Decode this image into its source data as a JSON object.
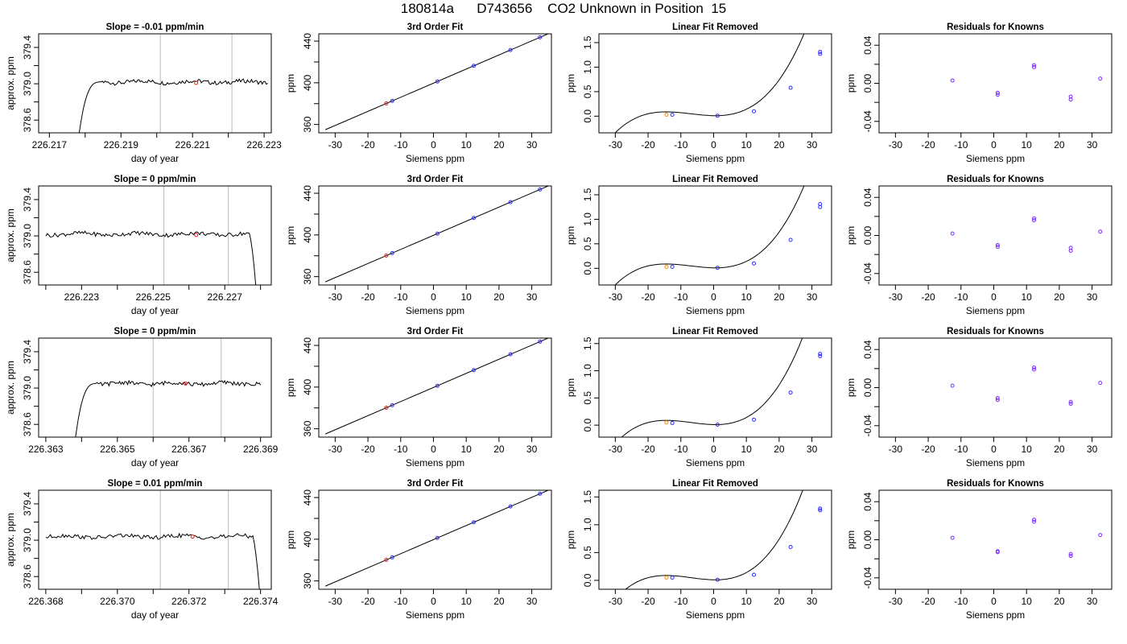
{
  "title": "180814a      D743656    CO2 Unknown in Position  15",
  "chart_data": [
    {
      "type": "line",
      "title": "Slope =  -0.01  ppm/min",
      "xlabel": "day of year",
      "ylabel": "approx. ppm",
      "xlim": [
        226.2167,
        226.2232
      ],
      "ylim": [
        378.46,
        379.55
      ],
      "xticks": [
        226.217,
        226.218,
        226.219,
        226.22,
        226.221,
        226.222,
        226.223
      ],
      "xticklabels": [
        "226.217",
        "",
        "226.219",
        "",
        "226.221",
        "",
        "226.223"
      ],
      "yticks": [
        378.6,
        378.8,
        379.0,
        379.2,
        379.4
      ],
      "yticklabels": [
        "378.6",
        "",
        "379.0",
        "",
        "379.4"
      ],
      "vlines": [
        226.2201,
        226.2221
      ],
      "marker": {
        "x": 226.2211,
        "y": 379.01
      },
      "series": [
        {
          "start": 226.2178,
          "end": 226.2231,
          "plateau": 379.02,
          "rise": "start",
          "drop": null
        }
      ]
    },
    {
      "type": "scatter",
      "title": "3rd Order Fit",
      "xlabel": "Siemens ppm",
      "ylabel": "ppm",
      "xlim": [
        -35,
        36
      ],
      "ylim": [
        352,
        447
      ],
      "xticks": [
        -30,
        -20,
        -10,
        0,
        10,
        20,
        30
      ],
      "yticks": [
        360,
        380,
        400,
        420,
        440
      ],
      "yticklabels": [
        "360",
        "",
        "400",
        "",
        "440"
      ],
      "fit": {
        "x0": -33,
        "y0": 355,
        "x1": 35,
        "y1": 447
      },
      "known_x": [
        -12.6,
        1.2,
        12.3,
        23.5,
        32.5
      ],
      "unknown_x": -14.4
    },
    {
      "type": "scatter",
      "title": "Linear Fit Removed",
      "xlabel": "Siemens ppm",
      "ylabel": "ppm",
      "xlim": [
        -35,
        36
      ],
      "ylim": [
        -0.34,
        1.68
      ],
      "xticks": [
        -30,
        -20,
        -10,
        0,
        10,
        20,
        30
      ],
      "yticks": [
        0,
        0.5,
        1.0,
        1.5
      ],
      "yticklabels": [
        "0.0",
        "0.5",
        "1.0",
        "1.5"
      ],
      "known": [
        [
          -12.6,
          0.03
        ],
        [
          1.2,
          0.01
        ],
        [
          12.3,
          0.1
        ],
        [
          23.5,
          0.58
        ],
        [
          32.5,
          1.27
        ],
        [
          32.5,
          1.31
        ]
      ],
      "unknown": [
        -14.4,
        0.03
      ],
      "curve": {
        "x_from": -33,
        "x_to": 34.5
      }
    },
    {
      "type": "scatter",
      "title": "Residuals for Knowns",
      "xlabel": "Siemens ppm",
      "ylabel": "ppm",
      "xlim": [
        -35,
        36
      ],
      "ylim": [
        -0.052,
        0.052
      ],
      "xticks": [
        -30,
        -20,
        -10,
        0,
        10,
        20,
        30
      ],
      "yticks": [
        -0.04,
        -0.02,
        0,
        0.02,
        0.04
      ],
      "yticklabels": [
        "-0.04",
        "",
        "0.00",
        "",
        "0.04"
      ],
      "points": [
        [
          -12.6,
          0.003
        ],
        [
          1.2,
          -0.01
        ],
        [
          1.2,
          -0.012
        ],
        [
          12.3,
          0.017
        ],
        [
          12.3,
          0.019
        ],
        [
          23.5,
          -0.014
        ],
        [
          23.5,
          -0.017
        ],
        [
          32.5,
          0.005
        ]
      ]
    },
    {
      "type": "line",
      "title": "Slope =  0  ppm/min",
      "xlabel": "day of year",
      "ylabel": "approx. ppm",
      "xlim": [
        226.2218,
        226.2283
      ],
      "ylim": [
        378.46,
        379.55
      ],
      "xticks": [
        226.222,
        226.223,
        226.224,
        226.225,
        226.226,
        226.227,
        226.228
      ],
      "xticklabels": [
        "",
        "226.223",
        "",
        "226.225",
        "",
        "226.227",
        ""
      ],
      "yticks": [
        378.6,
        378.8,
        379.0,
        379.2,
        379.4
      ],
      "yticklabels": [
        "378.6",
        "",
        "379.0",
        "",
        "379.4"
      ],
      "vlines": [
        226.2253,
        226.2271
      ],
      "marker": {
        "x": 226.2262,
        "y": 379.01
      },
      "series": [
        {
          "start": 226.222,
          "end": 226.2279,
          "plateau": 379.02,
          "rise": null,
          "drop": "end"
        }
      ]
    },
    {
      "type": "scatter",
      "title": "3rd Order Fit",
      "xlabel": "Siemens ppm",
      "ylabel": "ppm",
      "xlim": [
        -35,
        36
      ],
      "ylim": [
        352,
        447
      ],
      "xticks": [
        -30,
        -20,
        -10,
        0,
        10,
        20,
        30
      ],
      "yticks": [
        360,
        380,
        400,
        420,
        440
      ],
      "yticklabels": [
        "360",
        "",
        "400",
        "",
        "440"
      ],
      "fit": {
        "x0": -33,
        "y0": 355,
        "x1": 35,
        "y1": 447
      },
      "known_x": [
        -12.6,
        1.2,
        12.3,
        23.5,
        32.5
      ],
      "unknown_x": -14.4
    },
    {
      "type": "scatter",
      "title": "Linear Fit Removed",
      "xlabel": "Siemens ppm",
      "ylabel": "ppm",
      "xlim": [
        -35,
        36
      ],
      "ylim": [
        -0.34,
        1.68
      ],
      "xticks": [
        -30,
        -20,
        -10,
        0,
        10,
        20,
        30
      ],
      "yticks": [
        0,
        0.5,
        1.0,
        1.5
      ],
      "yticklabels": [
        "0.0",
        "0.5",
        "1.0",
        "1.5"
      ],
      "known": [
        [
          -12.6,
          0.03
        ],
        [
          1.2,
          0.01
        ],
        [
          12.3,
          0.1
        ],
        [
          23.5,
          0.58
        ],
        [
          32.5,
          1.25
        ],
        [
          32.5,
          1.31
        ]
      ],
      "unknown": [
        -14.4,
        0.03
      ],
      "curve": {
        "x_from": -33,
        "x_to": 34.5
      }
    },
    {
      "type": "scatter",
      "title": "Residuals for Knowns",
      "xlabel": "Siemens ppm",
      "ylabel": "ppm",
      "xlim": [
        -35,
        36
      ],
      "ylim": [
        -0.052,
        0.052
      ],
      "xticks": [
        -30,
        -20,
        -10,
        0,
        10,
        20,
        30
      ],
      "yticks": [
        -0.04,
        -0.02,
        0,
        0.02,
        0.04
      ],
      "yticklabels": [
        "-0.04",
        "",
        "0.00",
        "",
        "0.04"
      ],
      "points": [
        [
          -12.6,
          0.002
        ],
        [
          1.2,
          -0.01
        ],
        [
          1.2,
          -0.012
        ],
        [
          12.3,
          0.016
        ],
        [
          12.3,
          0.018
        ],
        [
          23.5,
          -0.013
        ],
        [
          23.5,
          -0.016
        ],
        [
          32.5,
          0.004
        ]
      ]
    },
    {
      "type": "line",
      "title": "Slope =  0  ppm/min",
      "xlabel": "day of year",
      "ylabel": "approx. ppm",
      "xlim": [
        226.3628,
        226.3693
      ],
      "ylim": [
        378.46,
        379.55
      ],
      "xticks": [
        226.363,
        226.364,
        226.365,
        226.366,
        226.367,
        226.368,
        226.369
      ],
      "xticklabels": [
        "226.363",
        "",
        "226.365",
        "",
        "226.367",
        "",
        "226.369"
      ],
      "yticks": [
        378.6,
        378.8,
        379.0,
        379.2,
        379.4
      ],
      "yticklabels": [
        "378.6",
        "",
        "379.0",
        "",
        "379.4"
      ],
      "vlines": [
        226.366,
        226.3679
      ],
      "marker": {
        "x": 226.3669,
        "y": 379.05
      },
      "series": [
        {
          "start": 226.3638,
          "end": 226.369,
          "plateau": 379.05,
          "rise": "start",
          "drop": null
        }
      ]
    },
    {
      "type": "scatter",
      "title": "3rd Order Fit",
      "xlabel": "Siemens ppm",
      "ylabel": "ppm",
      "xlim": [
        -35,
        36
      ],
      "ylim": [
        352,
        447
      ],
      "xticks": [
        -30,
        -20,
        -10,
        0,
        10,
        20,
        30
      ],
      "yticks": [
        360,
        380,
        400,
        420,
        440
      ],
      "yticklabels": [
        "360",
        "",
        "400",
        "",
        "440"
      ],
      "fit": {
        "x0": -33,
        "y0": 355,
        "x1": 35,
        "y1": 447
      },
      "known_x": [
        -12.6,
        1.2,
        12.3,
        23.5,
        32.5
      ],
      "unknown_x": -14.4
    },
    {
      "type": "scatter",
      "title": "Linear Fit Removed",
      "xlabel": "Siemens ppm",
      "ylabel": "ppm",
      "xlim": [
        -35,
        36
      ],
      "ylim": [
        -0.22,
        1.6
      ],
      "xticks": [
        -30,
        -20,
        -10,
        0,
        10,
        20,
        30
      ],
      "yticks": [
        0,
        0.5,
        1.0,
        1.5
      ],
      "yticklabels": [
        "0.0",
        "0.5",
        "1.0",
        "1.5"
      ],
      "known": [
        [
          -12.6,
          0.04
        ],
        [
          1.2,
          0.01
        ],
        [
          12.3,
          0.1
        ],
        [
          23.5,
          0.6
        ],
        [
          32.5,
          1.27
        ],
        [
          32.5,
          1.31
        ]
      ],
      "unknown": [
        -14.4,
        0.05
      ],
      "curve": {
        "x_from": -33,
        "x_to": 34.5
      }
    },
    {
      "type": "scatter",
      "title": "Residuals for Knowns",
      "xlabel": "Siemens ppm",
      "ylabel": "ppm",
      "xlim": [
        -35,
        36
      ],
      "ylim": [
        -0.052,
        0.052
      ],
      "xticks": [
        -30,
        -20,
        -10,
        0,
        10,
        20,
        30
      ],
      "yticks": [
        -0.04,
        -0.02,
        0,
        0.02,
        0.04
      ],
      "yticklabels": [
        "-0.04",
        "",
        "0.00",
        "",
        "0.04"
      ],
      "points": [
        [
          -12.6,
          0.002
        ],
        [
          1.2,
          -0.011
        ],
        [
          1.2,
          -0.013
        ],
        [
          12.3,
          0.019
        ],
        [
          12.3,
          0.021
        ],
        [
          23.5,
          -0.015
        ],
        [
          23.5,
          -0.017
        ],
        [
          32.5,
          0.005
        ]
      ]
    },
    {
      "type": "line",
      "title": "Slope =  0.01  ppm/min",
      "xlabel": "day of year",
      "ylabel": "approx. ppm",
      "xlim": [
        226.3678,
        226.3743
      ],
      "ylim": [
        378.46,
        379.55
      ],
      "xticks": [
        226.368,
        226.369,
        226.37,
        226.371,
        226.372,
        226.373,
        226.374
      ],
      "xticklabels": [
        "226.368",
        "",
        "226.370",
        "",
        "226.372",
        "",
        "226.374"
      ],
      "yticks": [
        378.6,
        378.8,
        379.0,
        379.2,
        379.4
      ],
      "yticklabels": [
        "378.6",
        "",
        "379.0",
        "",
        "379.4"
      ],
      "vlines": [
        226.3712,
        226.3731
      ],
      "marker": {
        "x": 226.3721,
        "y": 379.04
      },
      "series": [
        {
          "start": 226.368,
          "end": 226.374,
          "plateau": 379.04,
          "rise": null,
          "drop": "end"
        }
      ]
    },
    {
      "type": "scatter",
      "title": "3rd Order Fit",
      "xlabel": "Siemens ppm",
      "ylabel": "ppm",
      "xlim": [
        -35,
        36
      ],
      "ylim": [
        352,
        447
      ],
      "xticks": [
        -30,
        -20,
        -10,
        0,
        10,
        20,
        30
      ],
      "yticks": [
        360,
        380,
        400,
        420,
        440
      ],
      "yticklabels": [
        "360",
        "",
        "400",
        "",
        "440"
      ],
      "fit": {
        "x0": -33,
        "y0": 355,
        "x1": 35,
        "y1": 447
      },
      "known_x": [
        -12.6,
        1.2,
        12.3,
        23.5,
        32.5
      ],
      "unknown_x": -14.4
    },
    {
      "type": "scatter",
      "title": "Linear Fit Removed",
      "xlabel": "Siemens ppm",
      "ylabel": "ppm",
      "xlim": [
        -35,
        36
      ],
      "ylim": [
        -0.16,
        1.62
      ],
      "xticks": [
        -30,
        -20,
        -10,
        0,
        10,
        20,
        30
      ],
      "yticks": [
        0,
        0.5,
        1.0,
        1.5
      ],
      "yticklabels": [
        "0.0",
        "0.5",
        "1.0",
        "1.5"
      ],
      "known": [
        [
          -12.6,
          0.05
        ],
        [
          1.2,
          0.01
        ],
        [
          12.3,
          0.1
        ],
        [
          23.5,
          0.6
        ],
        [
          32.5,
          1.26
        ],
        [
          32.5,
          1.29
        ]
      ],
      "unknown": [
        -14.4,
        0.05
      ],
      "curve": {
        "x_from": -33,
        "x_to": 34.5
      }
    },
    {
      "type": "scatter",
      "title": "Residuals for Knowns",
      "xlabel": "Siemens ppm",
      "ylabel": "ppm",
      "xlim": [
        -35,
        36
      ],
      "ylim": [
        -0.052,
        0.052
      ],
      "xticks": [
        -30,
        -20,
        -10,
        0,
        10,
        20,
        30
      ],
      "yticks": [
        -0.04,
        -0.02,
        0,
        0.02,
        0.04
      ],
      "yticklabels": [
        "-0.04",
        "",
        "0.00",
        "",
        "0.04"
      ],
      "points": [
        [
          -12.6,
          0.002
        ],
        [
          1.2,
          -0.012
        ],
        [
          1.2,
          -0.013
        ],
        [
          12.3,
          0.019
        ],
        [
          12.3,
          0.021
        ],
        [
          23.5,
          -0.015
        ],
        [
          23.5,
          -0.017
        ],
        [
          32.5,
          0.005
        ]
      ]
    }
  ]
}
